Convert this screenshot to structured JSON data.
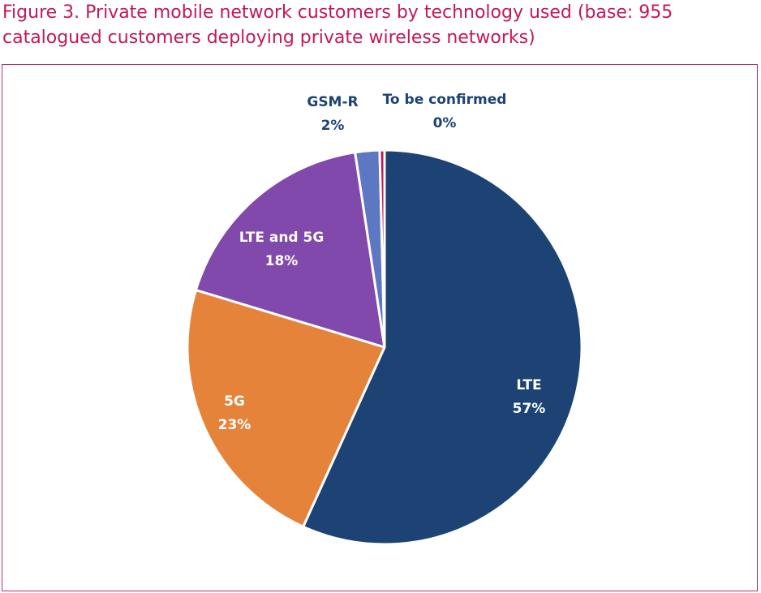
{
  "figure": {
    "title_line1": "Figure 3. Private mobile network customers by technology used (base: 955",
    "title_line2": "catalogued customers deploying private wireless networks)"
  },
  "chart_data": {
    "type": "pie",
    "slices": [
      {
        "name": "LTE",
        "value": 57,
        "value_label": "57%",
        "color": "#1c4374",
        "label_color": "#ffffff"
      },
      {
        "name": "5G",
        "value": 23,
        "value_label": "23%",
        "color": "#e5833a",
        "label_color": "#ffffff"
      },
      {
        "name": "LTE and 5G",
        "value": 18,
        "value_label": "18%",
        "color": "#8249ad",
        "label_color": "#ffffff"
      },
      {
        "name": "GSM-R",
        "value": 2,
        "value_label": "2%",
        "color": "#5e77c2",
        "label_color": "#1c4374"
      },
      {
        "name": "To be confirmed",
        "value": 0.4,
        "value_label": "0%",
        "color": "#c2185b",
        "label_color": "#1c4374"
      }
    ]
  }
}
